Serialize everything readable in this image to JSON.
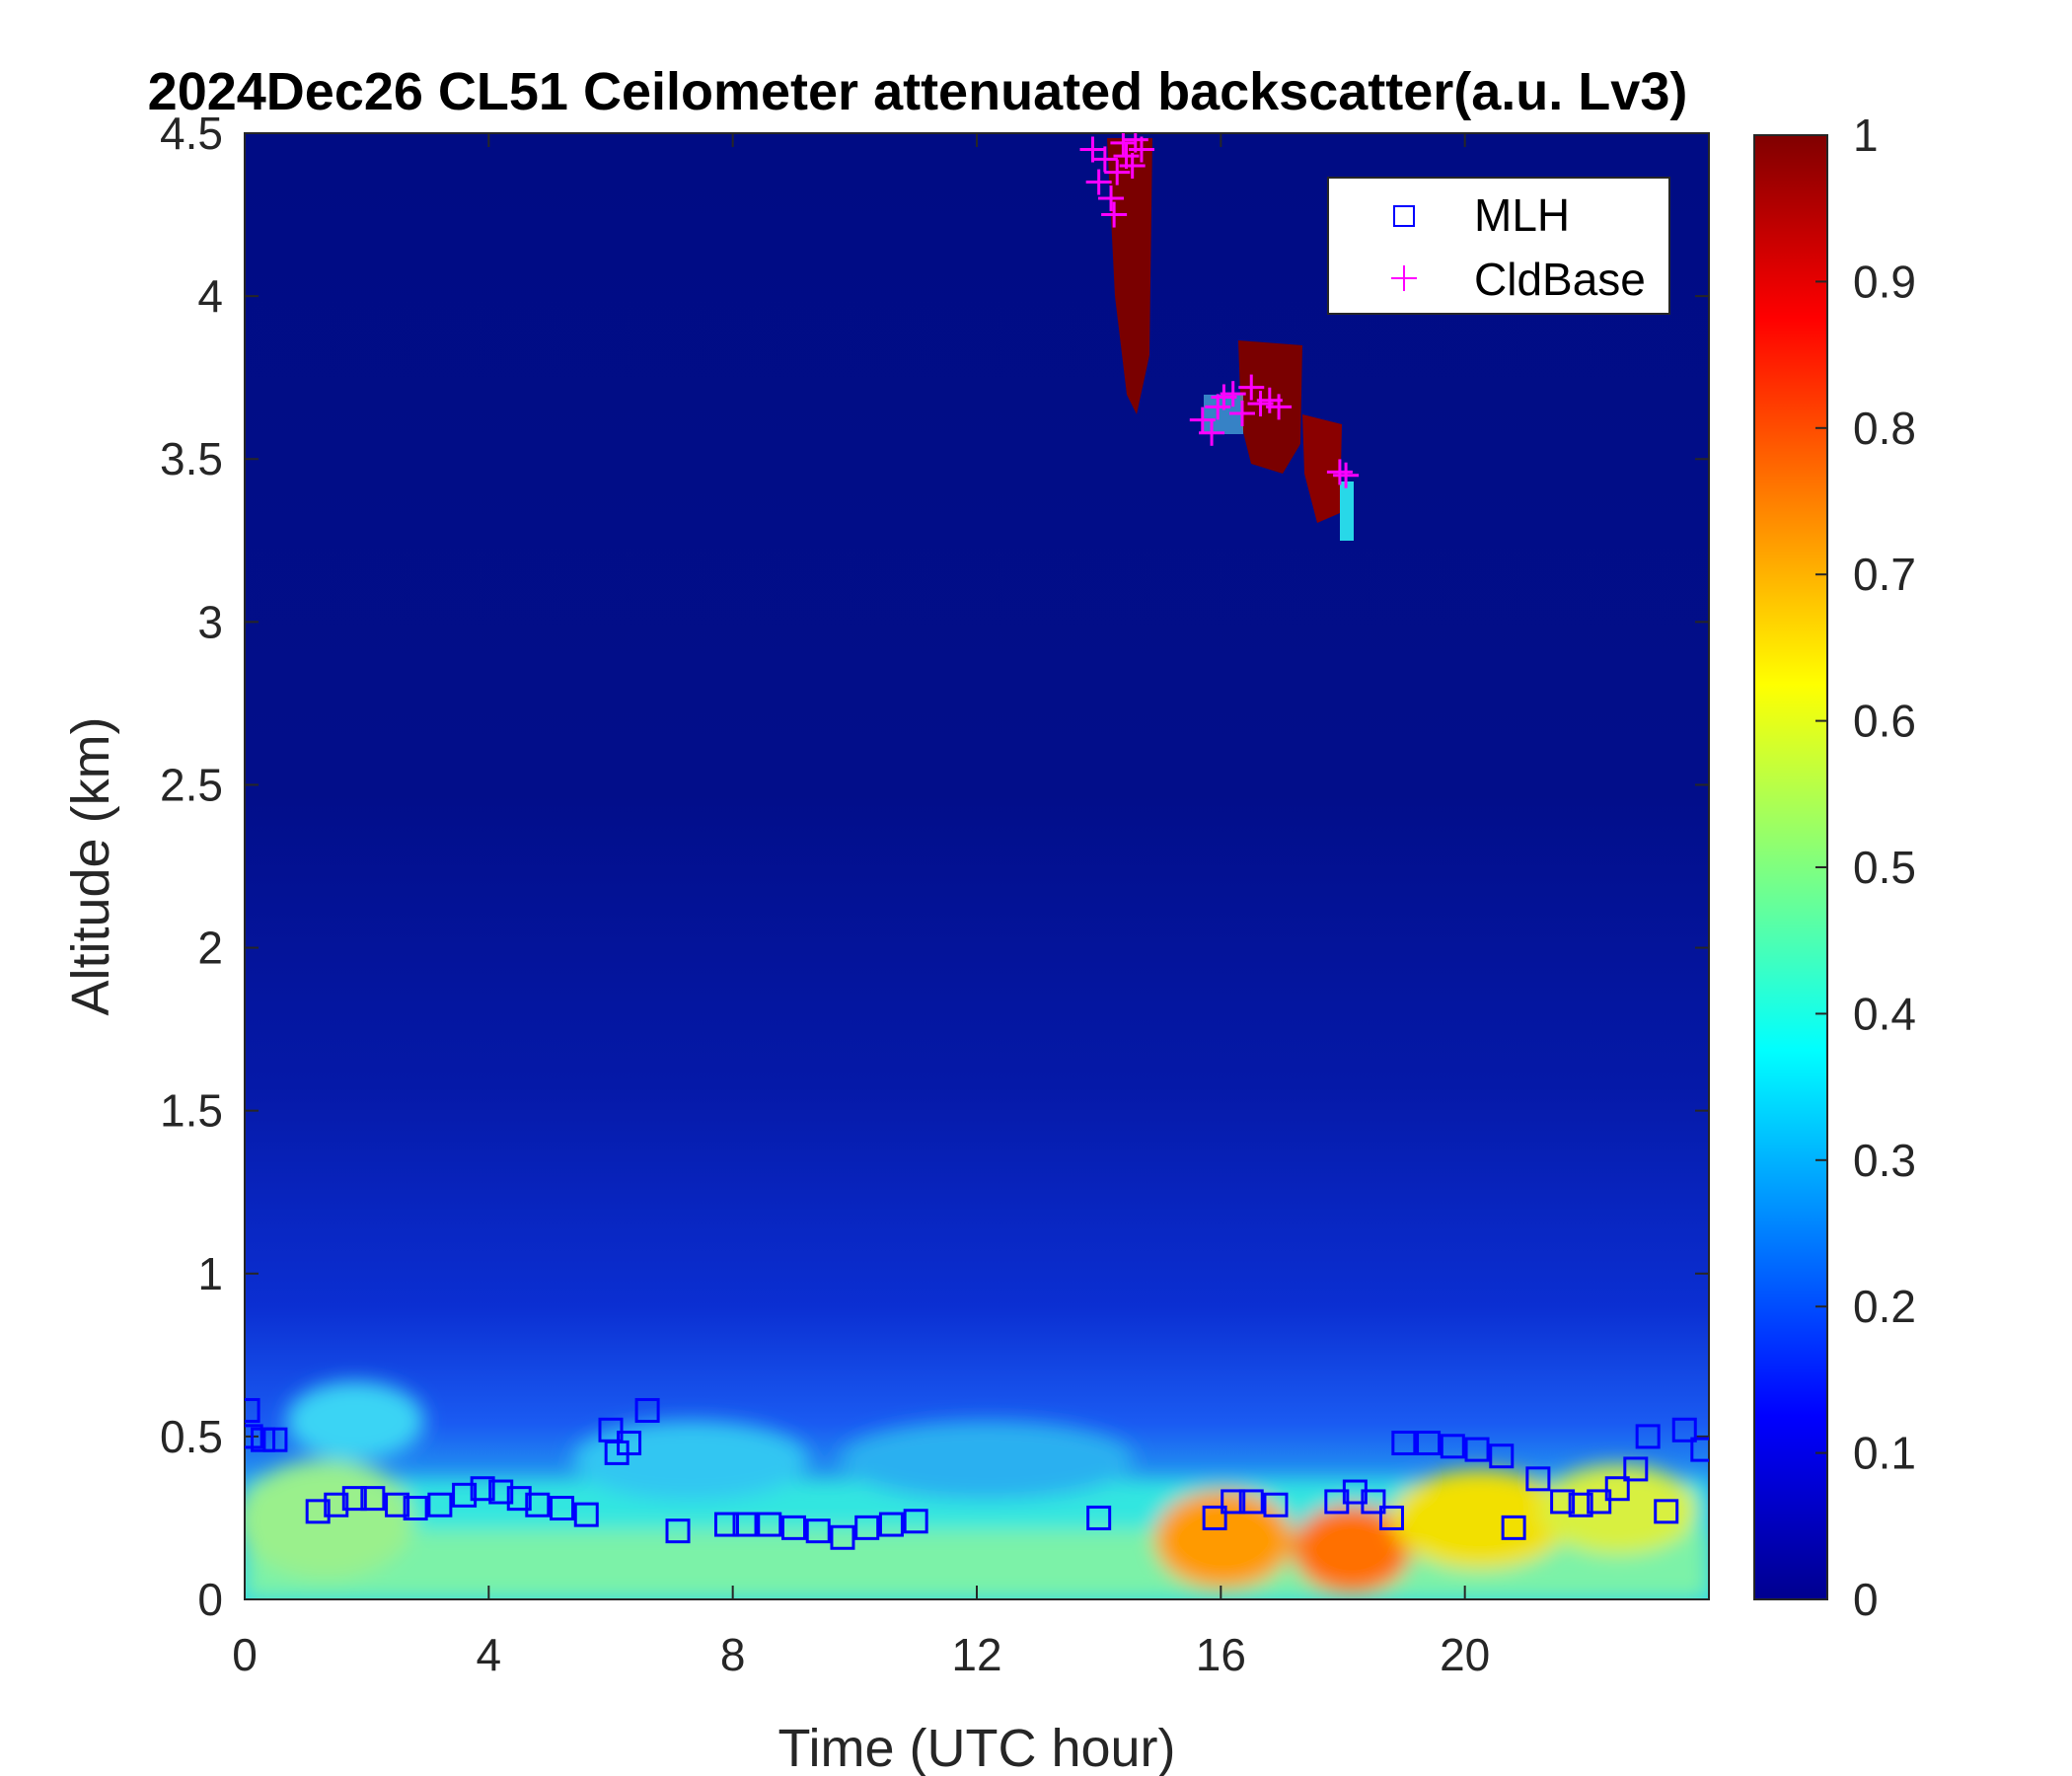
{
  "chart_data": {
    "type": "heatmap",
    "title": "2024Dec26 CL51 Ceilometer attenuated backscatter(a.u. Lv3)",
    "xlabel": "Time (UTC hour)",
    "ylabel": "Altitude (km)",
    "xlim": [
      0,
      24
    ],
    "ylim": [
      0,
      4.5
    ],
    "xticks": [
      0,
      4,
      8,
      12,
      16,
      20
    ],
    "yticks": [
      0,
      0.5,
      1,
      1.5,
      2,
      2.5,
      3,
      3.5,
      4,
      4.5
    ],
    "colorbar": {
      "colormap": "jet",
      "range": [
        0,
        1
      ],
      "ticks": [
        0,
        0.1,
        0.2,
        0.3,
        0.4,
        0.5,
        0.6,
        0.7,
        0.8,
        0.9,
        1
      ]
    },
    "legend": {
      "position": "top-right",
      "entries": [
        {
          "label": "MLH",
          "marker": "square",
          "color": "#0000ff"
        },
        {
          "label": "CldBase",
          "marker": "plus",
          "color": "#ff00ff"
        }
      ]
    },
    "series": [
      {
        "name": "MLH",
        "x": [
          0.05,
          0.1,
          0.3,
          0.5,
          1.2,
          1.5,
          1.8,
          2.1,
          2.5,
          2.8,
          3.2,
          3.6,
          3.9,
          4.2,
          4.5,
          4.8,
          5.2,
          5.6,
          6.0,
          6.1,
          6.3,
          6.6,
          7.1,
          7.9,
          8.2,
          8.6,
          9.0,
          9.4,
          9.8,
          10.2,
          10.6,
          11.0,
          14.0,
          15.9,
          16.2,
          16.5,
          16.9,
          17.9,
          18.2,
          18.5,
          18.8,
          19.0,
          19.4,
          19.8,
          20.2,
          20.6,
          20.8,
          21.2,
          21.6,
          21.9,
          22.2,
          22.5,
          22.8,
          23.0,
          23.3,
          23.6,
          23.9
        ],
        "y": [
          0.58,
          0.5,
          0.49,
          0.49,
          0.27,
          0.29,
          0.31,
          0.31,
          0.29,
          0.28,
          0.29,
          0.32,
          0.34,
          0.33,
          0.31,
          0.29,
          0.28,
          0.26,
          0.52,
          0.45,
          0.48,
          0.58,
          0.21,
          0.23,
          0.23,
          0.23,
          0.22,
          0.21,
          0.19,
          0.22,
          0.23,
          0.24,
          0.25,
          0.25,
          0.3,
          0.3,
          0.29,
          0.3,
          0.33,
          0.3,
          0.25,
          0.48,
          0.48,
          0.47,
          0.46,
          0.44,
          0.22,
          0.37,
          0.3,
          0.29,
          0.3,
          0.34,
          0.4,
          0.5,
          0.27,
          0.52,
          0.46
        ]
      },
      {
        "name": "CldBase",
        "x": [
          13.9,
          14.0,
          14.1,
          14.2,
          14.25,
          14.3,
          14.4,
          14.45,
          14.55,
          14.6,
          14.7,
          15.7,
          15.85,
          15.95,
          16.05,
          16.2,
          16.35,
          16.5,
          16.65,
          16.8,
          16.95,
          17.95,
          18.05
        ],
        "y": [
          4.45,
          4.35,
          4.42,
          4.3,
          4.25,
          4.38,
          4.47,
          4.43,
          4.4,
          4.48,
          4.45,
          3.62,
          3.58,
          3.66,
          3.69,
          3.7,
          3.64,
          3.72,
          3.67,
          3.68,
          3.66,
          3.46,
          3.45
        ]
      }
    ]
  }
}
